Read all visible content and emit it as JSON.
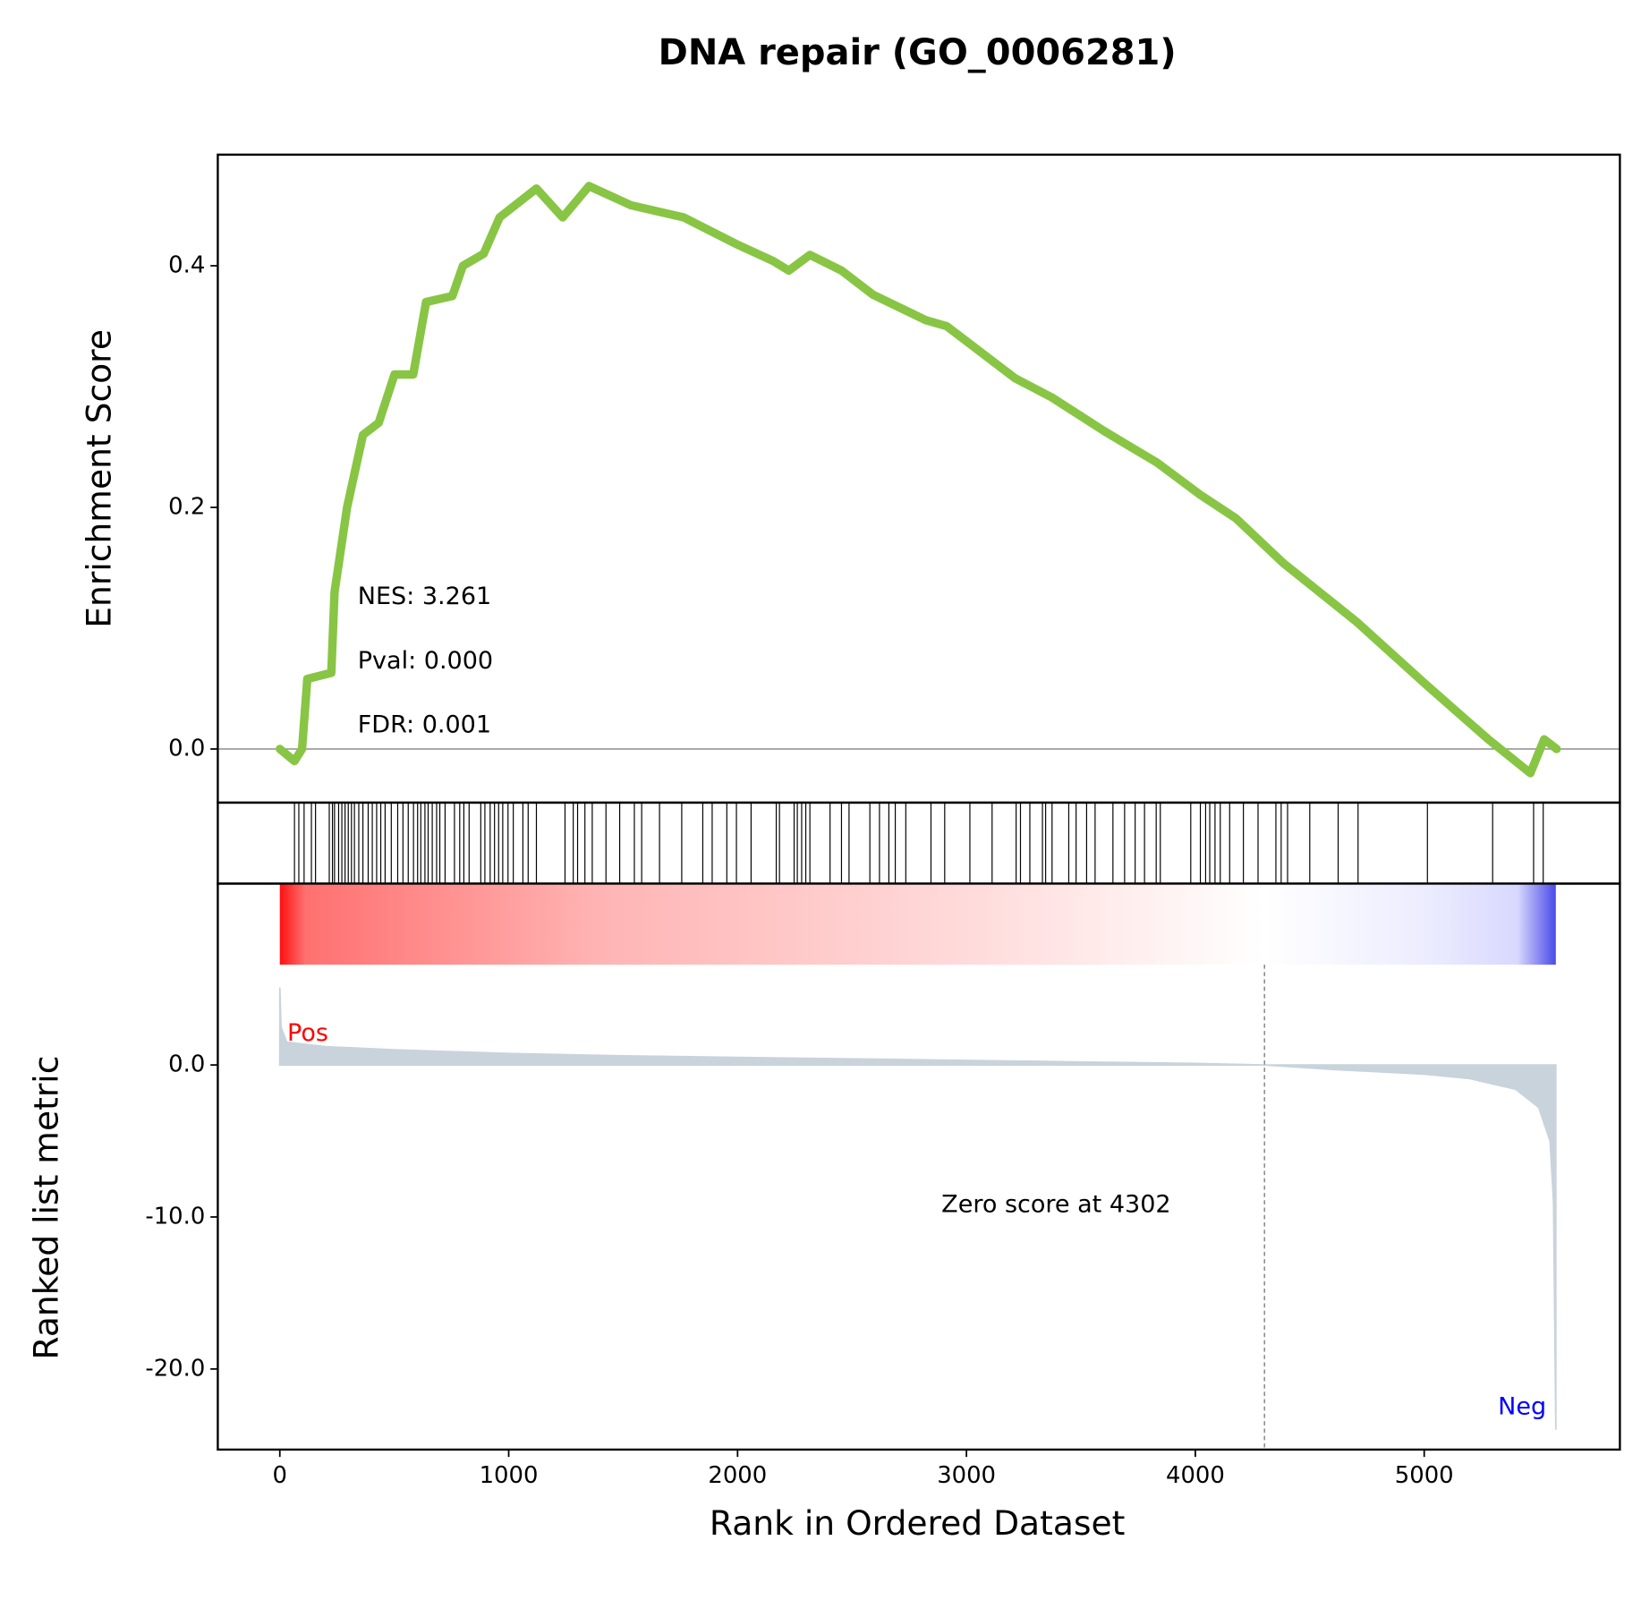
{
  "chart_data": [
    {
      "type": "line",
      "title": "DNA repair (GO_0006281)",
      "ylabel": "Enrichment Score",
      "annotations": [
        "NES: 3.261",
        "Pval: 0.000",
        "FDR: 0.001"
      ],
      "color": "#88c544",
      "x": [
        0,
        64,
        97,
        120,
        225,
        239,
        294,
        363,
        432,
        501,
        583,
        639,
        754,
        800,
        891,
        960,
        1121,
        1236,
        1351,
        1535,
        1765,
        1994,
        2155,
        2224,
        2316,
        2454,
        2592,
        2822,
        2914,
        3212,
        3373,
        3603,
        3833,
        4017,
        4177,
        4384,
        4706,
        5004,
        5280,
        5464,
        5524,
        5579
      ],
      "values": [
        0,
        -0.01,
        0.0,
        0.058,
        0.063,
        0.13,
        0.2,
        0.26,
        0.27,
        0.31,
        0.31,
        0.37,
        0.375,
        0.4,
        0.41,
        0.44,
        0.464,
        0.44,
        0.466,
        0.45,
        0.44,
        0.418,
        0.404,
        0.396,
        0.409,
        0.396,
        0.376,
        0.355,
        0.35,
        0.307,
        0.291,
        0.263,
        0.237,
        0.211,
        0.191,
        0.154,
        0.105,
        0.054,
        0.008,
        -0.02,
        0.008,
        0.0
      ],
      "xlim": [
        -271,
        5855
      ],
      "ylim": [
        -0.0444,
        0.492
      ],
      "yticks": [
        {
          "value": 0,
          "label": "0.0"
        },
        {
          "value": 0.2,
          "label": "0.2"
        },
        {
          "value": 0.4,
          "label": "0.4"
        }
      ]
    },
    {
      "type": "rug",
      "x": [
        64,
        83,
        106,
        138,
        156,
        216,
        230,
        239,
        257,
        271,
        285,
        299,
        313,
        326,
        345,
        363,
        386,
        404,
        423,
        441,
        460,
        487,
        515,
        538,
        561,
        584,
        602,
        616,
        634,
        648,
        666,
        685,
        699,
        722,
        763,
        786,
        804,
        827,
        878,
        896,
        919,
        938,
        956,
        974,
        997,
        1020,
        1062,
        1085,
        1121,
        1246,
        1282,
        1301,
        1333,
        1365,
        1425,
        1485,
        1549,
        1581,
        1659,
        1756,
        1848,
        1889,
        1953,
        1995,
        2059,
        2169,
        2183,
        2247,
        2261,
        2280,
        2298,
        2316,
        2404,
        2454,
        2487,
        2578,
        2620,
        2661,
        2689,
        2735,
        2845,
        2905,
        3015,
        3112,
        3217,
        3236,
        3277,
        3332,
        3346,
        3374,
        3447,
        3479,
        3525,
        3562,
        3640,
        3691,
        3737,
        3778,
        3829,
        3847,
        3980,
        4022,
        4045,
        4063,
        4086,
        4109,
        4150,
        4210,
        4274,
        4352,
        4375,
        4403,
        4500,
        4624,
        4711,
        5014,
        5299,
        5478,
        5520
      ],
      "xlim": [
        -271,
        5855
      ]
    },
    {
      "type": "area",
      "ylabel": "Ranked list metric",
      "xlabel": "Rank in Ordered Dataset",
      "color": "#c9d3dc",
      "x": [
        0,
        5,
        30,
        200,
        500,
        1000,
        1500,
        2000,
        2500,
        3000,
        3500,
        4000,
        4302,
        4600,
        5000,
        5200,
        5400,
        5500,
        5550,
        5565,
        5575
      ],
      "values": [
        5.1,
        2.5,
        1.5,
        1.2,
        1.0,
        0.75,
        0.6,
        0.5,
        0.4,
        0.3,
        0.2,
        0.1,
        0,
        -0.3,
        -0.6,
        -0.9,
        -1.6,
        -2.8,
        -5,
        -9,
        -24
      ],
      "zero_score": 4302,
      "zero_score_label": "Zero score at 4302",
      "pos_label": "Pos",
      "pos_color": "#ff0000",
      "neg_label": "Neg",
      "neg_color": "#0000ff",
      "xlim": [
        -271,
        5855
      ],
      "ylim": [
        -25.3,
        6.6
      ],
      "xticks": [
        0,
        1000,
        2000,
        3000,
        4000,
        5000
      ],
      "yticks": [
        {
          "value": 0,
          "label": "0.0"
        },
        {
          "value": -10,
          "label": "-10.0"
        },
        {
          "value": -20,
          "label": "-20.0"
        }
      ]
    }
  ]
}
